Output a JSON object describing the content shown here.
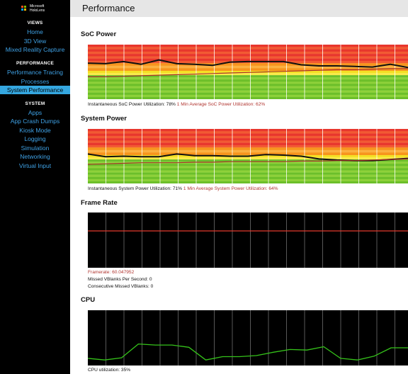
{
  "app": {
    "logo_text_line1": "Microsoft",
    "logo_text_line2": "HoloLens",
    "logo_colors": [
      "#f25022",
      "#7fba00",
      "#00a4ef",
      "#ffb900"
    ]
  },
  "sidebar": {
    "sections": [
      {
        "title": "VIEWS",
        "items": [
          "Home",
          "3D View",
          "Mixed Reality Capture"
        ]
      },
      {
        "title": "PERFORMANCE",
        "items": [
          "Performance Tracing",
          "Processes",
          "System Performance"
        ]
      },
      {
        "title": "SYSTEM",
        "items": [
          "Apps",
          "App Crash Dumps",
          "Kiosk Mode",
          "Logging",
          "Simulation",
          "Networking",
          "Virtual Input"
        ]
      }
    ],
    "active_item": "System Performance",
    "accent_color": "#35a7e0"
  },
  "header": {
    "title": "Performance"
  },
  "soc_power": {
    "heading": "SoC Power",
    "instant_label": "Instantaneous SoC Power Utilization: 78%",
    "avg_label": "1 Min Average SoC Power Utilization: 62%",
    "instant_percent": 78,
    "average_percent": 62
  },
  "system_power": {
    "heading": "System Power",
    "instant_label": "Instantaneous System Power Utilization: 71%",
    "avg_label": "1 Min Average System Power Utilization: 64%",
    "instant_percent": 71,
    "average_percent": 64
  },
  "frame_rate": {
    "heading": "Frame Rate",
    "framerate_label": "Framerate: 60.047952",
    "missed_label": "Missed VBlanks Per Second: 0",
    "consecutive_label": "Consecutive Missed VBlanks: 0"
  },
  "cpu": {
    "heading": "CPU",
    "utilization_label": "CPU utilization: 35%"
  },
  "chart_data": [
    {
      "type": "line",
      "id": "soc-power",
      "zones": [
        "red",
        "orange",
        "yellow",
        "green"
      ],
      "ylim": [
        0,
        100
      ],
      "series": [
        {
          "values": [
            66,
            65,
            69,
            64,
            72,
            65,
            64,
            62,
            68,
            69,
            69,
            69,
            63,
            61,
            61,
            60,
            59,
            64,
            58
          ]
        },
        {
          "values": [
            41,
            41,
            42,
            43,
            44,
            45,
            46,
            47,
            48,
            49,
            50,
            51,
            52,
            53,
            54,
            54,
            55,
            56,
            56
          ]
        }
      ]
    },
    {
      "type": "line",
      "id": "system-power",
      "zones": [
        "red",
        "orange",
        "yellow",
        "green"
      ],
      "ylim": [
        0,
        100
      ],
      "series": [
        {
          "values": [
            54,
            49,
            50,
            49,
            49,
            54,
            51,
            51,
            50,
            50,
            53,
            52,
            50,
            45,
            43,
            42,
            42,
            44,
            46
          ]
        },
        {
          "values": [
            35,
            36,
            37,
            38,
            38,
            38,
            39,
            39,
            40,
            40,
            40,
            40,
            41,
            41,
            42,
            42,
            43,
            44,
            45
          ]
        }
      ]
    },
    {
      "type": "line",
      "id": "frame-rate",
      "ylim": [
        0,
        90
      ],
      "series": [
        {
          "values": [
            60,
            60,
            60,
            60,
            60,
            60,
            60,
            60,
            60,
            60,
            60,
            60,
            60,
            60,
            60,
            60,
            60,
            60,
            60
          ]
        }
      ]
    },
    {
      "type": "line",
      "id": "cpu",
      "ylim": [
        0,
        100
      ],
      "series": [
        {
          "values": [
            13,
            10,
            14,
            39,
            37,
            37,
            33,
            10,
            16,
            16,
            18,
            24,
            29,
            28,
            34,
            13,
            10,
            17,
            32,
            32
          ]
        }
      ]
    }
  ]
}
